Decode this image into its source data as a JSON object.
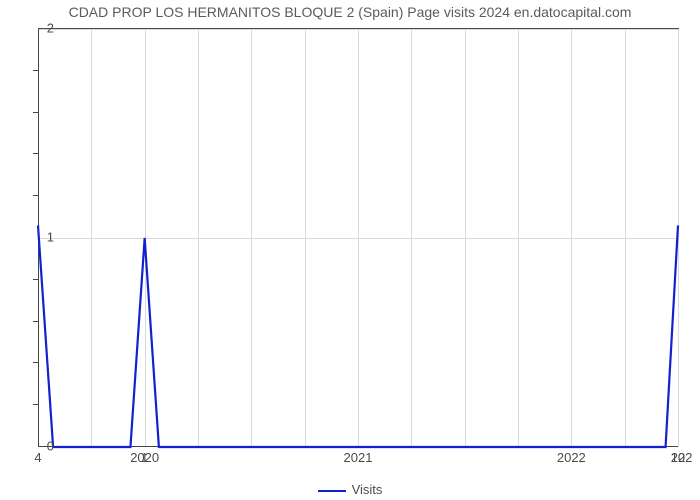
{
  "chart": {
    "type": "line",
    "title": "CDAD PROP LOS HERMANITOS BLOQUE 2 (Spain) Page visits 2024 en.datocapital.com",
    "title_fontsize": 14,
    "title_color": "#5b5b5b",
    "background_color": "#ffffff",
    "line_color": "#1421cf",
    "line_width": 2.2,
    "grid_color": "#d9d9d9",
    "axis_color": "#444444",
    "border_top_right_color": "#4a4a4a",
    "tick_label_color": "#4a4a4a",
    "tick_fontsize": 13,
    "y": {
      "lim": [
        0,
        2
      ],
      "major_ticks": [
        0,
        1,
        2
      ],
      "minor_ticks_between": 4
    },
    "x": {
      "domain": [
        0,
        36
      ],
      "year_labels": [
        {
          "text": "2020",
          "at": 6
        },
        {
          "text": "2021",
          "at": 18
        },
        {
          "text": "2022",
          "at": 30
        },
        {
          "text": "202",
          "at": 36.2
        }
      ],
      "minor_grid": [
        3,
        6,
        9,
        12,
        15,
        18,
        21,
        24,
        27,
        30,
        33,
        36
      ]
    },
    "point_labels": [
      {
        "text": "4",
        "x": 0
      },
      {
        "text": "1",
        "x": 6
      },
      {
        "text": "12",
        "x": 36
      }
    ],
    "series": {
      "name": "Visits",
      "points": [
        {
          "x": 0,
          "y": 1.06
        },
        {
          "x": 0.85,
          "y": 0
        },
        {
          "x": 5.2,
          "y": 0
        },
        {
          "x": 6.0,
          "y": 1.0
        },
        {
          "x": 6.8,
          "y": 0
        },
        {
          "x": 35.3,
          "y": 0
        },
        {
          "x": 36.0,
          "y": 1.06
        }
      ]
    },
    "legend": {
      "label": "Visits",
      "color": "#1421cf"
    }
  }
}
